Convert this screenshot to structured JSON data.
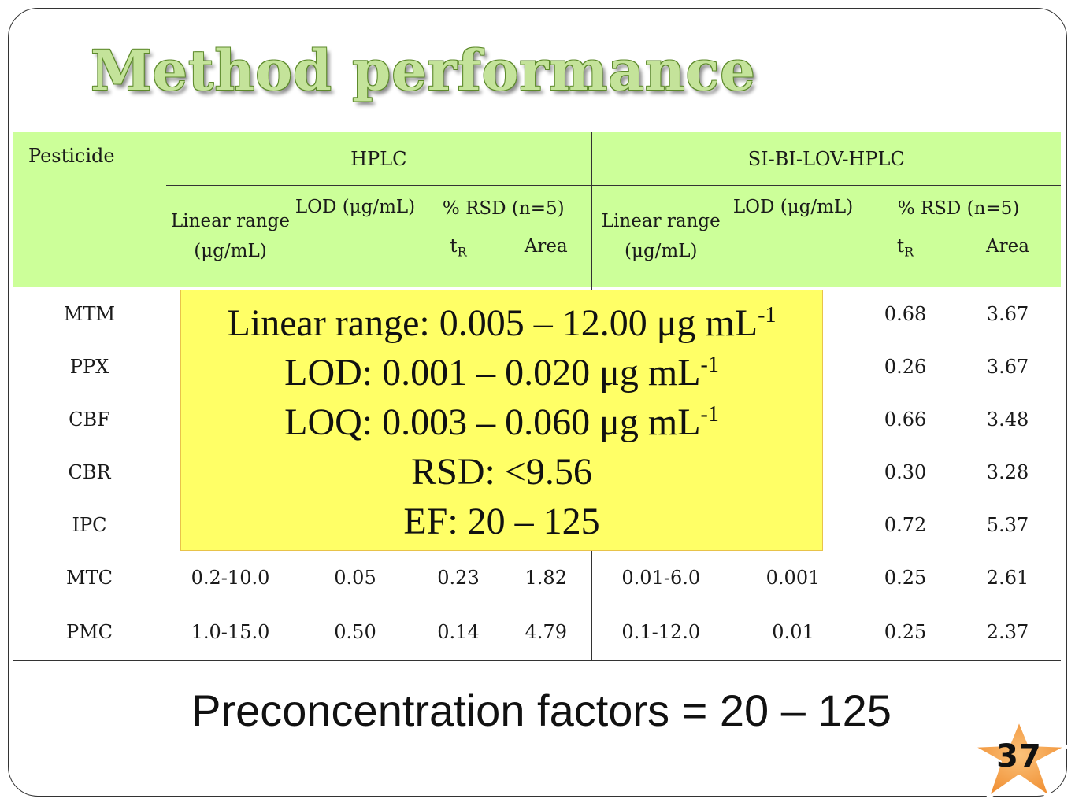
{
  "slide": {
    "title": "Method performance",
    "footer": "Preconcentration factors = 20 – 125",
    "page_number": "37"
  },
  "table": {
    "pesticide_header": "Pesticide",
    "groups": [
      "HPLC",
      "SI-BI-LOV-HPLC"
    ],
    "linear_range_header": "Linear range (μg/mL)",
    "lod_header": "LOD (μg/mL)",
    "rsd_header": "% RSD (n=5)",
    "tr_main": "t",
    "tr_sub": "R",
    "area_header": "Area",
    "rows": [
      {
        "name": "MTM",
        "hplc_range": "",
        "hplc_lod": "",
        "hplc_tr": "",
        "hplc_area": "",
        "si_range": "",
        "si_lod": "",
        "si_tr": "0.68",
        "si_area": "3.67"
      },
      {
        "name": "PPX",
        "hplc_range": "",
        "hplc_lod": "",
        "hplc_tr": "",
        "hplc_area": "",
        "si_range": "",
        "si_lod": "",
        "si_tr": "0.26",
        "si_area": "3.67"
      },
      {
        "name": "CBF",
        "hplc_range": "",
        "hplc_lod": "",
        "hplc_tr": "",
        "hplc_area": "",
        "si_range": "",
        "si_lod": "",
        "si_tr": "0.66",
        "si_area": "3.48"
      },
      {
        "name": "CBR",
        "hplc_range": "",
        "hplc_lod": "",
        "hplc_tr": "",
        "hplc_area": "",
        "si_range": "",
        "si_lod": "",
        "si_tr": "0.30",
        "si_area": "3.28"
      },
      {
        "name": "IPC",
        "hplc_range": "",
        "hplc_lod": "",
        "hplc_tr": "",
        "hplc_area": "",
        "si_range": "",
        "si_lod": "",
        "si_tr": "0.72",
        "si_area": "5.37"
      },
      {
        "name": "MTC",
        "hplc_range": "0.2-10.0",
        "hplc_lod": "0.05",
        "hplc_tr": "0.23",
        "hplc_area": "1.82",
        "si_range": "0.01-6.0",
        "si_lod": "0.001",
        "si_tr": "0.25",
        "si_area": "2.61"
      },
      {
        "name": "PMC",
        "hplc_range": "1.0-15.0",
        "hplc_lod": "0.50",
        "hplc_tr": "0.14",
        "hplc_area": "4.79",
        "si_range": "0.1-12.0",
        "si_lod": "0.01",
        "si_tr": "0.25",
        "si_area": "2.37"
      }
    ]
  },
  "summary": {
    "lines": [
      {
        "text": "Linear range: 0.005 – 12.00 μg mL",
        "sup": "-1"
      },
      {
        "text": "LOD: 0.001 – 0.020 μg mL",
        "sup": "-1"
      },
      {
        "text": "LOQ: 0.003 – 0.060 μg mL",
        "sup": "-1"
      },
      {
        "text": "RSD: <9.56",
        "sup": ""
      },
      {
        "text": "EF: 20 – 125",
        "sup": ""
      }
    ]
  },
  "colors": {
    "header_fill": "#ccff99",
    "title_fill": "#c4e39a",
    "overlay_fill": "#ffff66",
    "star_fill": "#f7a14b"
  }
}
